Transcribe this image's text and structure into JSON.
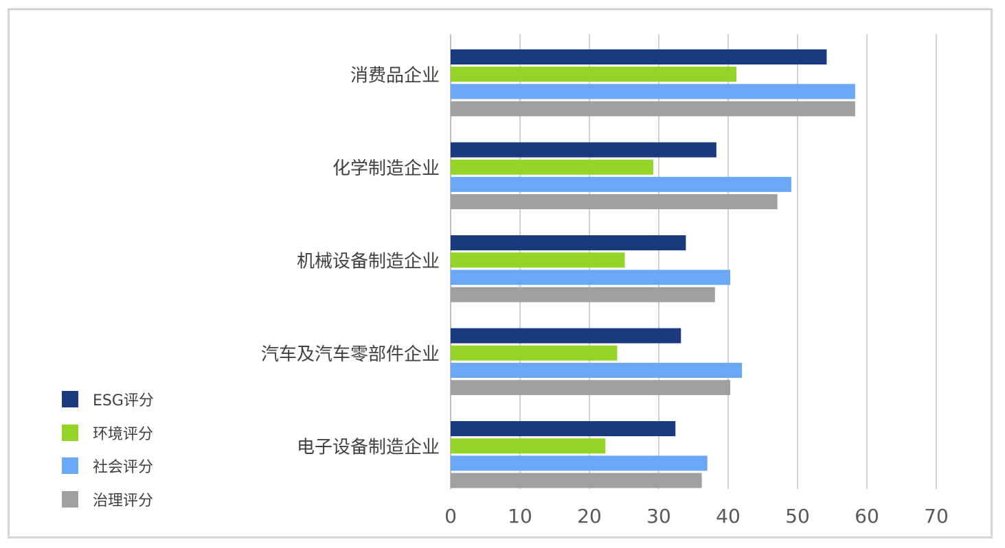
{
  "chart_data": {
    "type": "bar",
    "orientation": "horizontal",
    "categories": [
      "消费品企业",
      "化学制造企业",
      "机械设备制造企业",
      "汽车及汽车零部件企业",
      "电子设备制造企业"
    ],
    "series": [
      {
        "name": "ESG评分",
        "color": "#1a3a80",
        "values": [
          54.2,
          38.3,
          33.9,
          33.2,
          32.4
        ]
      },
      {
        "name": "环境评分",
        "color": "#93d427",
        "values": [
          41.2,
          29.2,
          25.1,
          24.0,
          22.3
        ]
      },
      {
        "name": "社会评分",
        "color": "#6aa8f5",
        "values": [
          58.3,
          49.1,
          40.3,
          42.0,
          37.0
        ]
      },
      {
        "name": "治理评分",
        "color": "#a0a0a0",
        "values": [
          58.3,
          47.1,
          38.1,
          40.3,
          36.2
        ]
      }
    ],
    "xlim": [
      0,
      70
    ],
    "xticks": [
      "0",
      "10",
      "20",
      "30",
      "40",
      "50",
      "60",
      "70"
    ],
    "grid": "vertical",
    "legend_position": "bottom-left",
    "title": "",
    "xlabel": "",
    "ylabel": ""
  }
}
